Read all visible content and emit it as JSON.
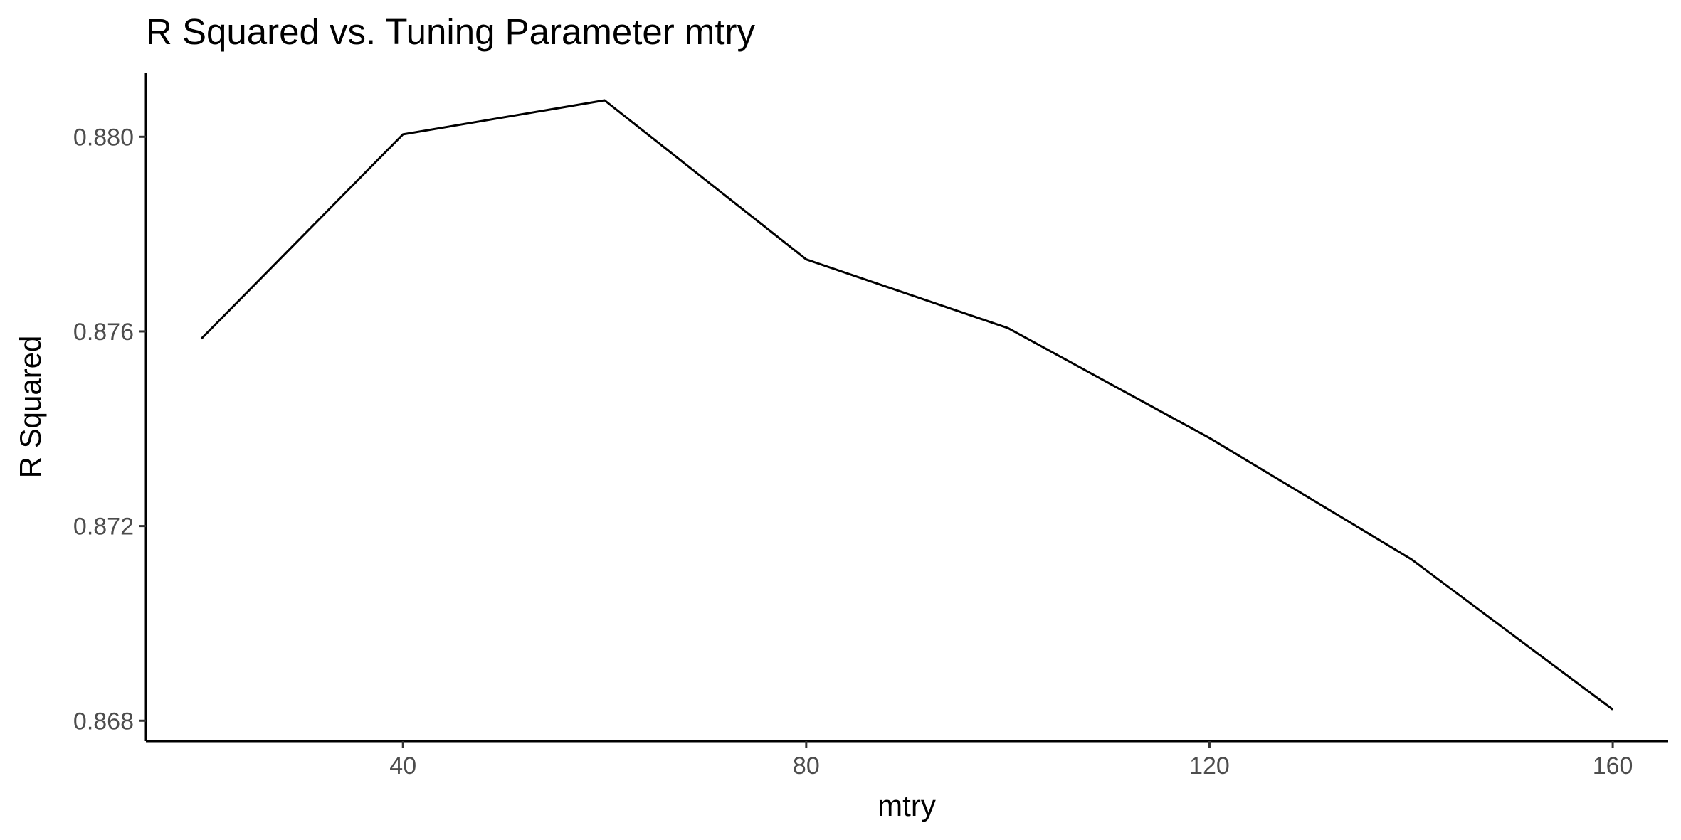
{
  "chart_data": {
    "type": "line",
    "title": "R Squared vs. Tuning Parameter mtry",
    "xlabel": "mtry",
    "ylabel": "R Squared",
    "xlim": [
      14.5,
      165.5
    ],
    "ylim": [
      0.86758,
      0.88132
    ],
    "x_ticks": [
      40,
      80,
      120,
      160
    ],
    "x_tick_labels": [
      "40",
      "80",
      "120",
      "160"
    ],
    "y_ticks": [
      0.868,
      0.872,
      0.876,
      0.88
    ],
    "y_tick_labels": [
      "0.868",
      "0.872",
      "0.876",
      "0.880"
    ],
    "grid": false,
    "legend": "none",
    "line_color": "#000000",
    "series": [
      {
        "x": [
          20,
          40,
          60,
          80,
          100,
          120,
          140,
          160
        ],
        "values": [
          0.87585,
          0.88005,
          0.88075,
          0.87748,
          0.87607,
          0.87381,
          0.87132,
          0.86823
        ]
      }
    ]
  }
}
